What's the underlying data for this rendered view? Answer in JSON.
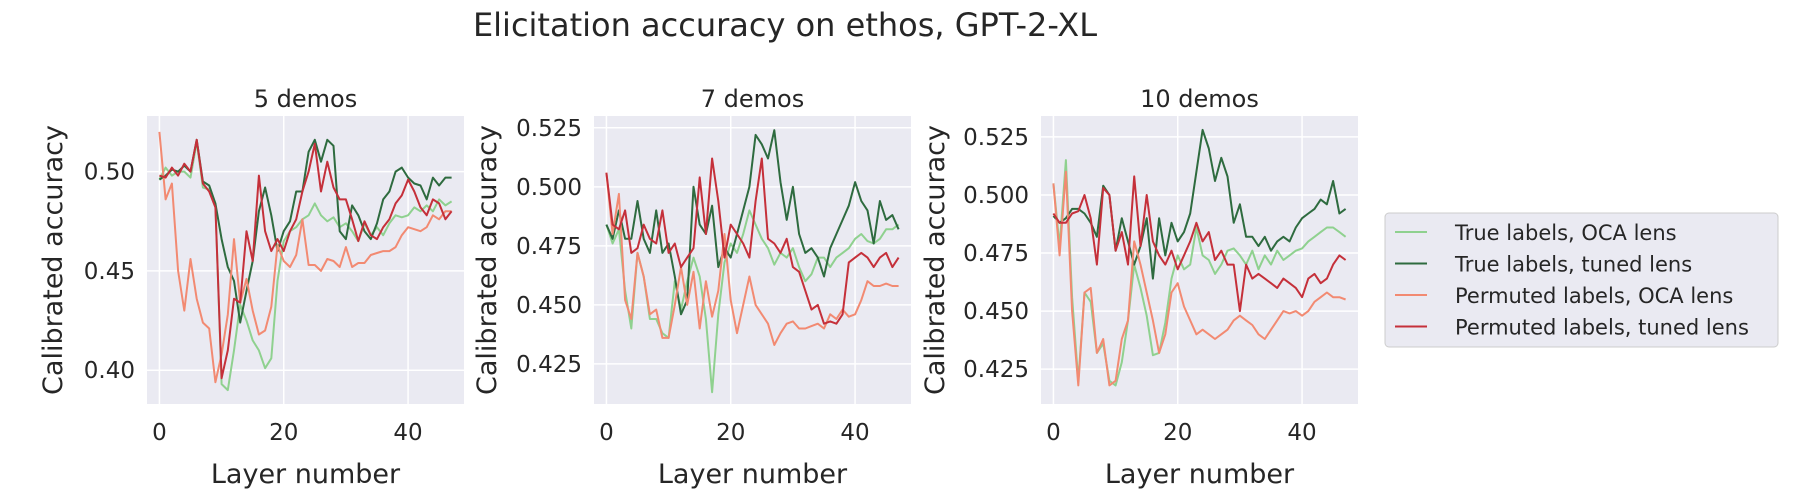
{
  "figure": {
    "title": "Elicitation accuracy on ethos, GPT-2-XL"
  },
  "colors": {
    "panel_bg": "#eaeaf2",
    "grid": "#ffffff",
    "text": "#262626",
    "true_oca": "#8fd18f",
    "true_tuned": "#2e6b3f",
    "perm_oca": "#f28a72",
    "perm_tuned": "#c5303a"
  },
  "legend": {
    "placement": "right",
    "entries": [
      {
        "label": "True labels, OCA lens",
        "color_key": "true_oca"
      },
      {
        "label": "True labels, tuned lens",
        "color_key": "true_tuned"
      },
      {
        "label": "Permuted labels, OCA lens",
        "color_key": "perm_oca"
      },
      {
        "label": "Permuted labels, tuned lens",
        "color_key": "perm_tuned"
      }
    ]
  },
  "chart_data": [
    {
      "type": "line",
      "title": "5 demos",
      "xlabel": "Layer number",
      "ylabel": "Calibrated accuracy",
      "xlim": [
        -2,
        49
      ],
      "ylim": [
        0.383,
        0.528
      ],
      "xticks": [
        0,
        20,
        40
      ],
      "yticks": [
        0.4,
        0.45,
        0.5
      ],
      "ytick_labels": [
        "0.40",
        "0.45",
        "0.50"
      ],
      "grid": true,
      "series": [
        {
          "name": "True labels, OCA lens",
          "color_key": "true_oca",
          "x_start": 0,
          "values": [
            0.496,
            0.502,
            0.498,
            0.5,
            0.5,
            0.497,
            0.515,
            0.492,
            0.491,
            0.484,
            0.393,
            0.39,
            0.41,
            0.433,
            0.425,
            0.415,
            0.41,
            0.401,
            0.406,
            0.445,
            0.465,
            0.47,
            0.472,
            0.476,
            0.478,
            0.484,
            0.478,
            0.475,
            0.477,
            0.472,
            0.474,
            0.47,
            0.465,
            0.474,
            0.468,
            0.472,
            0.468,
            0.474,
            0.478,
            0.477,
            0.478,
            0.482,
            0.48,
            0.483,
            0.48,
            0.486,
            0.483,
            0.485
          ]
        },
        {
          "name": "True labels, tuned lens",
          "color_key": "true_tuned",
          "x_start": 0,
          "values": [
            0.496,
            0.498,
            0.501,
            0.5,
            0.503,
            0.5,
            0.516,
            0.495,
            0.493,
            0.484,
            0.466,
            0.452,
            0.445,
            0.424,
            0.44,
            0.455,
            0.48,
            0.492,
            0.478,
            0.46,
            0.47,
            0.475,
            0.49,
            0.49,
            0.51,
            0.516,
            0.505,
            0.516,
            0.513,
            0.47,
            0.466,
            0.483,
            0.478,
            0.47,
            0.466,
            0.474,
            0.486,
            0.49,
            0.5,
            0.502,
            0.497,
            0.494,
            0.493,
            0.486,
            0.497,
            0.493,
            0.497,
            0.497
          ]
        },
        {
          "name": "Permuted labels, OCA lens",
          "color_key": "perm_oca",
          "x_start": 0,
          "values": [
            0.52,
            0.486,
            0.494,
            0.45,
            0.43,
            0.456,
            0.436,
            0.424,
            0.421,
            0.394,
            0.408,
            0.428,
            0.466,
            0.434,
            0.446,
            0.43,
            0.418,
            0.42,
            0.432,
            0.463,
            0.455,
            0.452,
            0.458,
            0.476,
            0.453,
            0.453,
            0.45,
            0.456,
            0.455,
            0.452,
            0.462,
            0.452,
            0.454,
            0.454,
            0.458,
            0.459,
            0.46,
            0.46,
            0.462,
            0.468,
            0.472,
            0.471,
            0.47,
            0.472,
            0.478,
            0.476,
            0.48,
            0.48
          ]
        },
        {
          "name": "Permuted labels, tuned lens",
          "color_key": "perm_tuned",
          "x_start": 0,
          "values": [
            0.498,
            0.497,
            0.502,
            0.498,
            0.504,
            0.5,
            0.516,
            0.494,
            0.49,
            0.482,
            0.396,
            0.41,
            0.436,
            0.434,
            0.47,
            0.455,
            0.498,
            0.47,
            0.46,
            0.466,
            0.46,
            0.47,
            0.476,
            0.49,
            0.5,
            0.514,
            0.49,
            0.505,
            0.492,
            0.486,
            0.486,
            0.476,
            0.465,
            0.475,
            0.468,
            0.466,
            0.472,
            0.476,
            0.484,
            0.488,
            0.496,
            0.49,
            0.482,
            0.478,
            0.486,
            0.484,
            0.476,
            0.48
          ]
        }
      ]
    },
    {
      "type": "line",
      "title": "7 demos",
      "xlabel": "Layer number",
      "ylabel": "Calibrated accuracy",
      "xlim": [
        -2,
        49
      ],
      "ylim": [
        0.408,
        0.53
      ],
      "xticks": [
        0,
        20,
        40
      ],
      "yticks": [
        0.425,
        0.45,
        0.475,
        0.5,
        0.525
      ],
      "ytick_labels": [
        "0.425",
        "0.450",
        "0.475",
        "0.500",
        "0.525"
      ],
      "grid": true,
      "series": [
        {
          "name": "True labels, OCA lens",
          "color_key": "true_oca",
          "x_start": 0,
          "values": [
            0.484,
            0.476,
            0.482,
            0.456,
            0.44,
            0.472,
            0.462,
            0.444,
            0.444,
            0.438,
            0.436,
            0.46,
            0.448,
            0.46,
            0.47,
            0.462,
            0.444,
            0.413,
            0.446,
            0.468,
            0.476,
            0.472,
            0.48,
            0.49,
            0.484,
            0.478,
            0.474,
            0.467,
            0.472,
            0.47,
            0.474,
            0.466,
            0.46,
            0.463,
            0.47,
            0.47,
            0.466,
            0.47,
            0.472,
            0.474,
            0.478,
            0.48,
            0.477,
            0.476,
            0.478,
            0.482,
            0.482,
            0.484
          ]
        },
        {
          "name": "True labels, tuned lens",
          "color_key": "true_tuned",
          "x_start": 0,
          "values": [
            0.484,
            0.478,
            0.49,
            0.478,
            0.478,
            0.494,
            0.478,
            0.472,
            0.49,
            0.472,
            0.476,
            0.462,
            0.446,
            0.452,
            0.5,
            0.484,
            0.48,
            0.492,
            0.466,
            0.474,
            0.47,
            0.48,
            0.49,
            0.5,
            0.522,
            0.518,
            0.512,
            0.524,
            0.502,
            0.486,
            0.5,
            0.48,
            0.472,
            0.474,
            0.47,
            0.462,
            0.474,
            0.48,
            0.486,
            0.492,
            0.502,
            0.494,
            0.49,
            0.476,
            0.494,
            0.486,
            0.488,
            0.482
          ]
        },
        {
          "name": "Permuted labels, OCA lens",
          "color_key": "perm_oca",
          "x_start": 0,
          "values": [
            0.506,
            0.48,
            0.497,
            0.452,
            0.444,
            0.472,
            0.462,
            0.446,
            0.448,
            0.436,
            0.436,
            0.45,
            0.466,
            0.45,
            0.464,
            0.44,
            0.46,
            0.445,
            0.456,
            0.48,
            0.452,
            0.438,
            0.45,
            0.462,
            0.45,
            0.446,
            0.442,
            0.433,
            0.438,
            0.442,
            0.443,
            0.44,
            0.44,
            0.441,
            0.442,
            0.44,
            0.446,
            0.444,
            0.448,
            0.445,
            0.446,
            0.452,
            0.46,
            0.458,
            0.458,
            0.459,
            0.458,
            0.458
          ]
        },
        {
          "name": "Permuted labels, tuned lens",
          "color_key": "perm_tuned",
          "x_start": 0,
          "values": [
            0.506,
            0.484,
            0.482,
            0.49,
            0.472,
            0.474,
            0.484,
            0.478,
            0.476,
            0.49,
            0.472,
            0.476,
            0.466,
            0.47,
            0.474,
            0.504,
            0.48,
            0.512,
            0.494,
            0.47,
            0.484,
            0.48,
            0.476,
            0.47,
            0.494,
            0.512,
            0.478,
            0.476,
            0.472,
            0.478,
            0.466,
            0.464,
            0.456,
            0.448,
            0.45,
            0.442,
            0.443,
            0.442,
            0.446,
            0.468,
            0.47,
            0.472,
            0.47,
            0.466,
            0.47,
            0.472,
            0.466,
            0.47
          ]
        }
      ]
    },
    {
      "type": "line",
      "title": "10 demos",
      "xlabel": "Layer number",
      "ylabel": "Calibrated accuracy",
      "xlim": [
        -2,
        49
      ],
      "ylim": [
        0.41,
        0.534
      ],
      "xticks": [
        0,
        20,
        40
      ],
      "yticks": [
        0.425,
        0.45,
        0.475,
        0.5,
        0.525
      ],
      "ytick_labels": [
        "0.425",
        "0.450",
        "0.475",
        "0.500",
        "0.525"
      ],
      "grid": true,
      "series": [
        {
          "name": "True labels, OCA lens",
          "color_key": "true_oca",
          "x_start": 0,
          "values": [
            0.505,
            0.478,
            0.515,
            0.456,
            0.42,
            0.458,
            0.454,
            0.432,
            0.436,
            0.42,
            0.418,
            0.428,
            0.446,
            0.47,
            0.46,
            0.448,
            0.431,
            0.432,
            0.445,
            0.464,
            0.474,
            0.468,
            0.47,
            0.486,
            0.474,
            0.472,
            0.466,
            0.47,
            0.476,
            0.477,
            0.474,
            0.47,
            0.476,
            0.468,
            0.474,
            0.47,
            0.476,
            0.472,
            0.474,
            0.476,
            0.477,
            0.48,
            0.482,
            0.484,
            0.486,
            0.486,
            0.484,
            0.482
          ]
        },
        {
          "name": "True labels, tuned lens",
          "color_key": "true_tuned",
          "x_start": 0,
          "values": [
            0.491,
            0.488,
            0.49,
            0.494,
            0.494,
            0.492,
            0.488,
            0.482,
            0.504,
            0.5,
            0.476,
            0.49,
            0.48,
            0.47,
            0.478,
            0.49,
            0.464,
            0.49,
            0.474,
            0.488,
            0.48,
            0.484,
            0.492,
            0.51,
            0.528,
            0.52,
            0.506,
            0.516,
            0.508,
            0.488,
            0.496,
            0.482,
            0.482,
            0.478,
            0.482,
            0.476,
            0.48,
            0.482,
            0.48,
            0.486,
            0.49,
            0.492,
            0.494,
            0.498,
            0.496,
            0.506,
            0.492,
            0.494
          ]
        },
        {
          "name": "Permuted labels, OCA lens",
          "color_key": "perm_oca",
          "x_start": 0,
          "values": [
            0.505,
            0.474,
            0.51,
            0.45,
            0.418,
            0.458,
            0.46,
            0.432,
            0.438,
            0.418,
            0.42,
            0.438,
            0.446,
            0.48,
            0.47,
            0.458,
            0.446,
            0.432,
            0.44,
            0.458,
            0.462,
            0.452,
            0.446,
            0.44,
            0.442,
            0.44,
            0.438,
            0.44,
            0.442,
            0.446,
            0.448,
            0.446,
            0.444,
            0.44,
            0.438,
            0.442,
            0.446,
            0.45,
            0.449,
            0.45,
            0.448,
            0.45,
            0.454,
            0.456,
            0.458,
            0.456,
            0.456,
            0.455
          ]
        },
        {
          "name": "Permuted labels, tuned lens",
          "color_key": "perm_tuned",
          "x_start": 0,
          "values": [
            0.492,
            0.488,
            0.488,
            0.492,
            0.493,
            0.5,
            0.49,
            0.47,
            0.503,
            0.5,
            0.476,
            0.484,
            0.47,
            0.508,
            0.478,
            0.5,
            0.48,
            0.474,
            0.47,
            0.476,
            0.468,
            0.474,
            0.48,
            0.488,
            0.48,
            0.484,
            0.472,
            0.476,
            0.47,
            0.47,
            0.45,
            0.47,
            0.464,
            0.466,
            0.464,
            0.462,
            0.46,
            0.464,
            0.462,
            0.46,
            0.456,
            0.464,
            0.466,
            0.462,
            0.464,
            0.47,
            0.474,
            0.472
          ]
        }
      ]
    }
  ]
}
